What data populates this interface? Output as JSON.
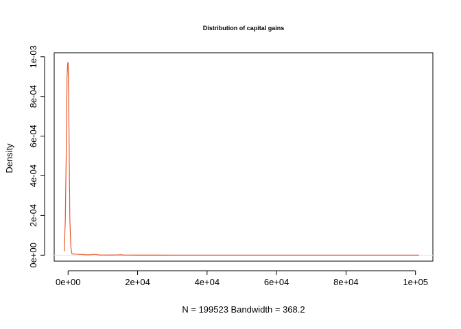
{
  "chart_data": {
    "type": "line",
    "title": "Distribution of capital gains",
    "xlabel": "N = 199523   Bandwidth = 368.2",
    "ylabel": "Density",
    "xlim": [
      -4000,
      105000
    ],
    "ylim": [
      -3e-05,
      0.00102
    ],
    "x_ticks": [
      0,
      20000,
      40000,
      60000,
      80000,
      100000
    ],
    "x_tick_labels": [
      "0e+00",
      "2e+04",
      "4e+04",
      "6e+04",
      "8e+04",
      "1e+05"
    ],
    "y_ticks": [
      0,
      0.0002,
      0.0004,
      0.0006,
      0.0008,
      0.001
    ],
    "y_tick_labels": [
      "0e+00",
      "2e-04",
      "4e-04",
      "6e-04",
      "8e-04",
      "1e-03"
    ],
    "grid": false,
    "line_color": "#e8562a",
    "baseline_color": "#e6e6e6",
    "series": [
      {
        "x": [
          -1100,
          -800,
          -500,
          -300,
          -100,
          0,
          100,
          300,
          500,
          800,
          1100,
          1500,
          2000,
          3000,
          4000,
          5000,
          6000,
          7000,
          7500,
          8000,
          9000,
          10000,
          12000,
          14000,
          15000,
          16000,
          18000,
          20000,
          25000,
          30000,
          40000,
          50000,
          60000,
          70000,
          80000,
          90000,
          100000,
          101000
        ],
        "y": [
          2e-05,
          0.00018,
          0.00055,
          0.0009,
          0.00097,
          0.00097,
          0.0009,
          0.00055,
          0.00018,
          4e-05,
          8e-06,
          5e-06,
          6e-06,
          4e-06,
          4e-06,
          2e-06,
          1.5e-06,
          3e-06,
          5e-06,
          3e-06,
          1e-06,
          8e-07,
          6e-07,
          8e-07,
          2e-06,
          6e-07,
          4e-07,
          3e-07,
          2e-07,
          1e-07,
          5e-08,
          3e-08,
          2e-08,
          2e-08,
          2e-08,
          2e-08,
          3e-08,
          1e-08
        ]
      }
    ]
  }
}
